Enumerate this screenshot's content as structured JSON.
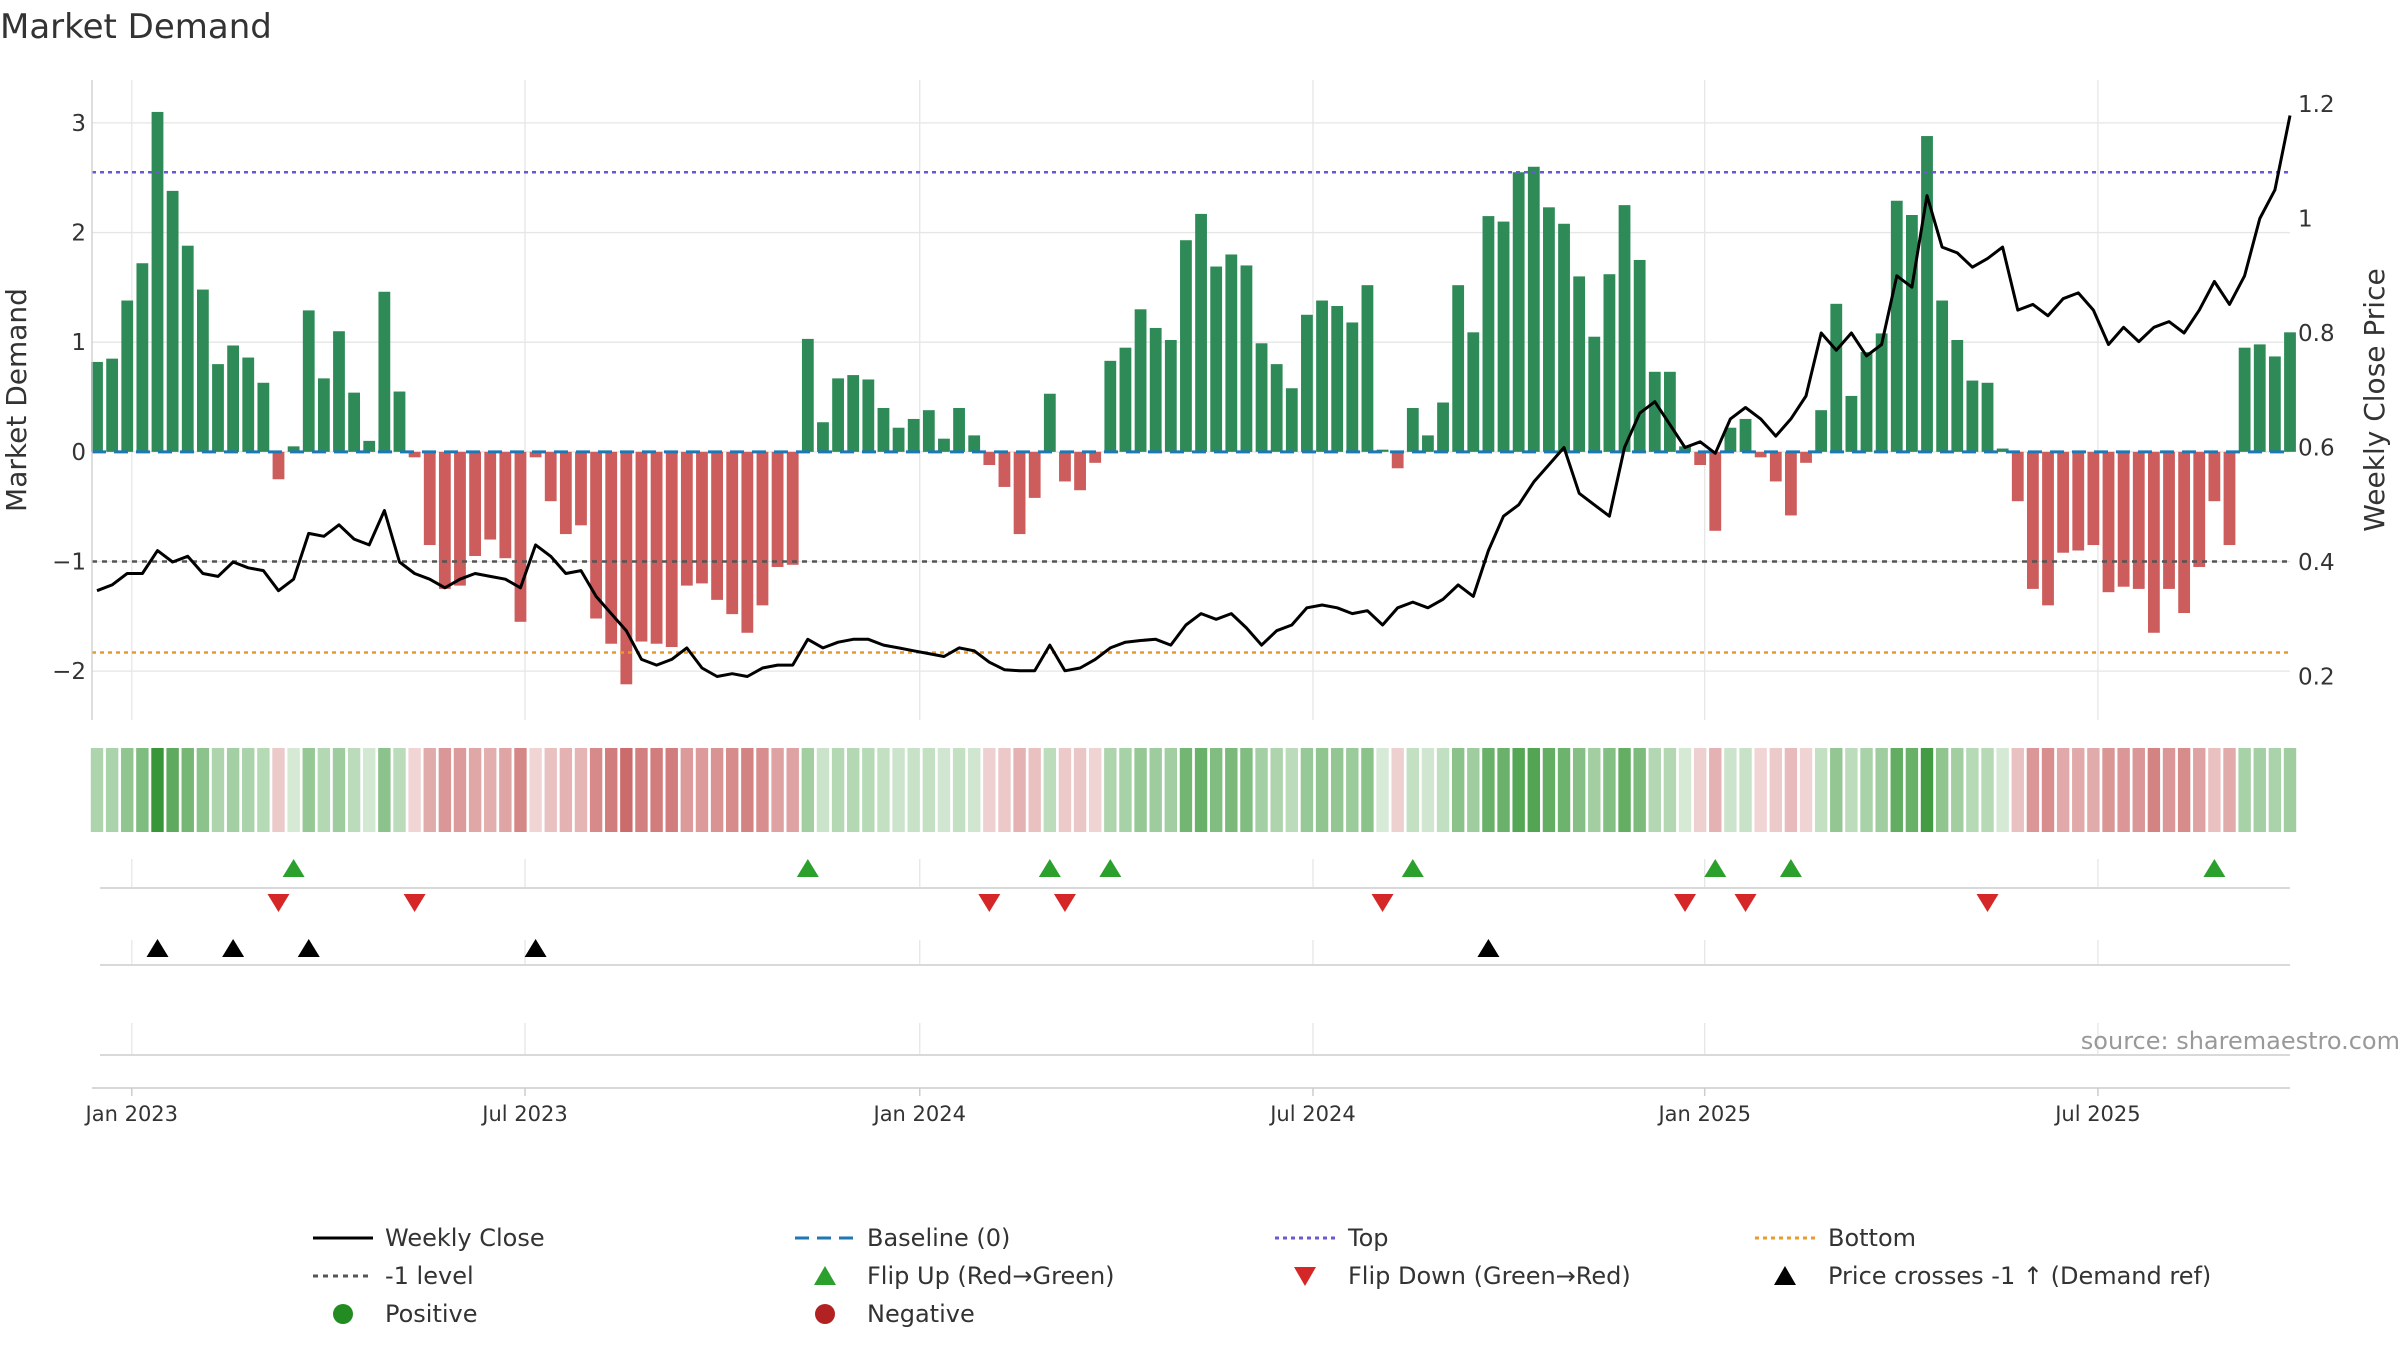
{
  "chart_data": {
    "type": "bar",
    "title": "Market Demand",
    "ylabel": "Market Demand",
    "y2label": "Weekly Close Price",
    "ylim": [
      -2.4,
      3.3
    ],
    "y2lim": [
      0.18,
      1.2
    ],
    "yticks": [
      "3",
      "2",
      "1",
      "0",
      "−1",
      "−2"
    ],
    "ytick_values": [
      3,
      2,
      1,
      0,
      -1,
      -2
    ],
    "y2ticks": [
      "1.2",
      "1",
      "0.8",
      "0.6",
      "0.4",
      "0.2"
    ],
    "y2tick_values": [
      1.2,
      1.0,
      0.8,
      0.6,
      0.4,
      0.2
    ],
    "xticks": [
      "Jan 2023",
      "Jul 2023",
      "Jan 2024",
      "Jul 2024",
      "Jan 2025",
      "Jul 2025"
    ],
    "xtick_weeks": [
      2.3,
      28.3,
      54.4,
      80.4,
      106.3,
      132.3
    ],
    "reference_lines": {
      "baseline": 0,
      "top": 2.55,
      "bottom": -1.83,
      "minus_one_level": -1
    },
    "demand": [
      0.82,
      0.85,
      1.38,
      1.72,
      3.1,
      2.38,
      1.88,
      1.48,
      0.8,
      0.97,
      0.86,
      0.63,
      -0.25,
      0.05,
      1.29,
      0.67,
      1.1,
      0.54,
      0.1,
      1.46,
      0.55,
      -0.05,
      -0.85,
      -1.25,
      -1.22,
      -0.95,
      -0.8,
      -0.97,
      -1.55,
      -0.05,
      -0.45,
      -0.75,
      -0.67,
      -1.52,
      -1.75,
      -2.12,
      -1.73,
      -1.75,
      -1.78,
      -1.22,
      -1.2,
      -1.35,
      -1.48,
      -1.65,
      -1.4,
      -1.05,
      -1.03,
      1.03,
      0.27,
      0.67,
      0.7,
      0.66,
      0.4,
      0.22,
      0.3,
      0.38,
      0.12,
      0.4,
      0.15,
      -0.12,
      -0.32,
      -0.75,
      -0.42,
      0.53,
      -0.27,
      -0.35,
      -0.1,
      0.83,
      0.95,
      1.3,
      1.13,
      1.02,
      1.93,
      2.17,
      1.69,
      1.8,
      1.7,
      0.99,
      0.8,
      0.58,
      1.25,
      1.38,
      1.33,
      1.18,
      1.52,
      0.02,
      -0.15,
      0.4,
      0.15,
      0.45,
      1.52,
      1.09,
      2.15,
      2.1,
      2.55,
      2.6,
      2.23,
      2.08,
      1.6,
      1.05,
      1.62,
      2.25,
      1.75,
      0.73,
      0.73,
      0.05,
      -0.12,
      -0.72,
      0.22,
      0.3,
      -0.05,
      -0.27,
      -0.58,
      -0.1,
      0.38,
      1.35,
      0.51,
      0.91,
      1.08,
      2.29,
      2.16,
      2.88,
      1.38,
      1.02,
      0.65,
      0.63,
      0.03,
      -0.45,
      -1.25,
      -1.4,
      -0.92,
      -0.9,
      -0.85,
      -1.28,
      -1.23,
      -1.25,
      -1.65,
      -1.25,
      -1.47,
      -1.05,
      -0.45,
      -0.85,
      0.95,
      0.98,
      0.87,
      1.09
    ],
    "weekly_close": [
      0.35,
      0.36,
      0.38,
      0.38,
      0.42,
      0.4,
      0.41,
      0.38,
      0.375,
      0.4,
      0.39,
      0.385,
      0.35,
      0.37,
      0.45,
      0.445,
      0.465,
      0.44,
      0.43,
      0.49,
      0.4,
      0.38,
      0.37,
      0.355,
      0.37,
      0.38,
      0.375,
      0.37,
      0.355,
      0.43,
      0.41,
      0.38,
      0.385,
      0.34,
      0.31,
      0.28,
      0.23,
      0.22,
      0.23,
      0.25,
      0.215,
      0.2,
      0.205,
      0.2,
      0.215,
      0.22,
      0.22,
      0.265,
      0.25,
      0.26,
      0.265,
      0.265,
      0.255,
      0.25,
      0.245,
      0.24,
      0.235,
      0.25,
      0.245,
      0.225,
      0.212,
      0.21,
      0.21,
      0.255,
      0.21,
      0.215,
      0.23,
      0.25,
      0.26,
      0.263,
      0.265,
      0.255,
      0.29,
      0.31,
      0.3,
      0.31,
      0.285,
      0.255,
      0.28,
      0.29,
      0.32,
      0.325,
      0.32,
      0.31,
      0.315,
      0.29,
      0.32,
      0.33,
      0.32,
      0.335,
      0.36,
      0.34,
      0.42,
      0.48,
      0.5,
      0.54,
      0.57,
      0.6,
      0.52,
      0.5,
      0.48,
      0.6,
      0.66,
      0.68,
      0.64,
      0.6,
      0.61,
      0.59,
      0.65,
      0.67,
      0.65,
      0.62,
      0.65,
      0.69,
      0.8,
      0.77,
      0.8,
      0.76,
      0.78,
      0.9,
      0.88,
      1.04,
      0.95,
      0.94,
      0.915,
      0.93,
      0.95,
      0.84,
      0.85,
      0.83,
      0.86,
      0.87,
      0.84,
      0.78,
      0.81,
      0.785,
      0.81,
      0.82,
      0.8,
      0.84,
      0.89,
      0.85,
      0.9,
      1.0,
      1.05,
      1.18
    ],
    "flip_up_weeks": [
      13,
      47,
      63,
      67,
      87,
      107,
      112,
      140
    ],
    "flip_down_weeks": [
      12,
      21,
      59,
      64,
      85,
      105,
      109,
      125
    ],
    "price_cross_weeks": [
      4,
      9,
      14,
      29,
      92
    ],
    "colors": {
      "positive_bar": "#2e8b57",
      "negative_bar": "#cd5c5c",
      "weekly_close": "#000000",
      "baseline": "#1f77b4",
      "top": "#6a5acd",
      "bottom": "#e69b2e",
      "minus_one_level": "#555555",
      "flip_up": "#2ca02c",
      "flip_down": "#d62728",
      "price_cross": "#000000",
      "positive_dot": "#228b22",
      "negative_dot": "#b22222"
    }
  },
  "legend": {
    "weekly_close": "Weekly Close",
    "baseline": "Baseline (0)",
    "top": "Top",
    "bottom": "Bottom",
    "minus_one": "-1 level",
    "flip_up": "Flip Up (Red→Green)",
    "flip_down": "Flip Down (Green→Red)",
    "price_cross": "Price crosses -1 ↑ (Demand ref)",
    "positive": "Positive",
    "negative": "Negative"
  },
  "source": "source: sharemaestro.com"
}
